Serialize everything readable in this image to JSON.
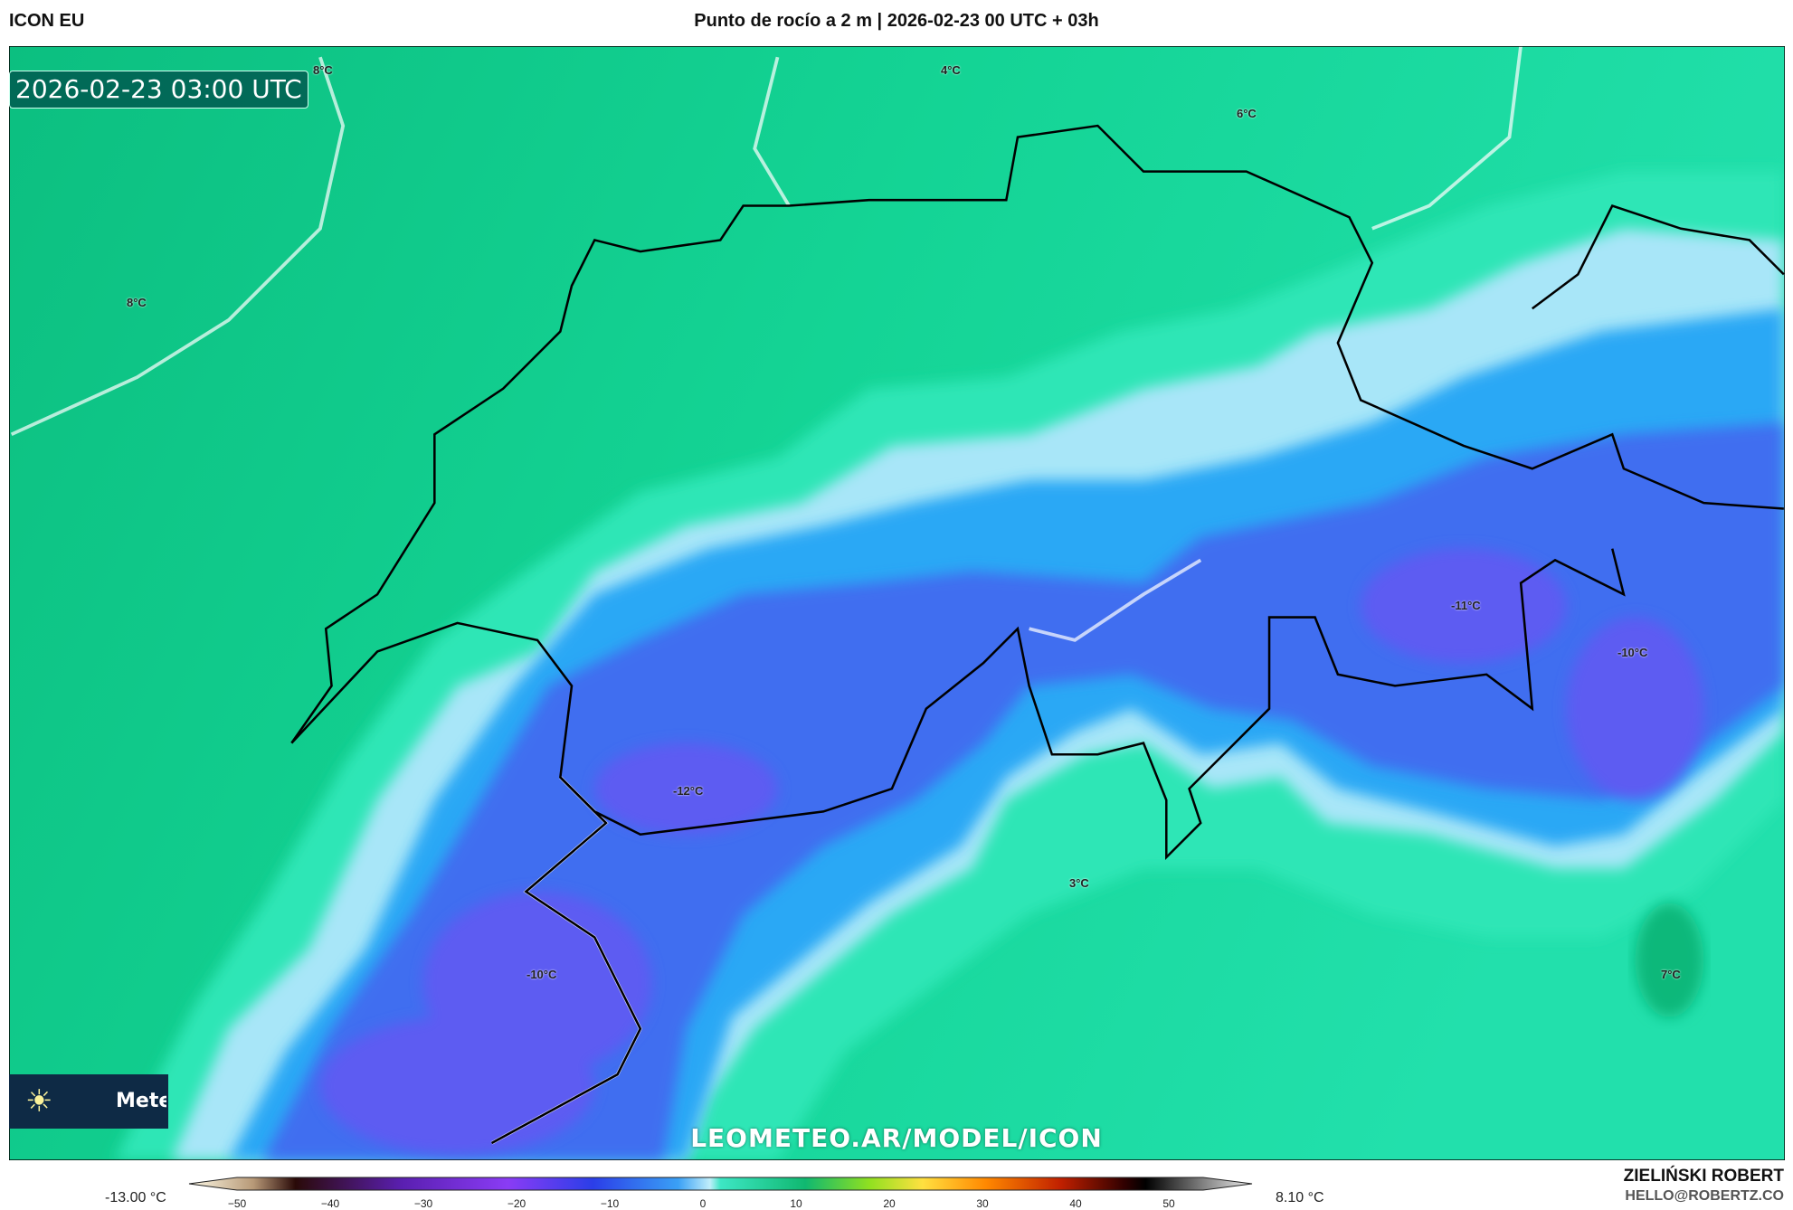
{
  "header": {
    "model": "ICON EU",
    "title": "Punto de rocío a 2 m | 2026-02-23 00 UTC + 03h"
  },
  "map": {
    "timestamp": "2026-02-23 03:00 UTC",
    "watermark": "LEOMETEO.AR/MODEL/ICON",
    "labels": [
      "8°C",
      "4°C",
      "6°C",
      "8°C",
      "-11°C",
      "-10°C",
      "-12°C",
      "3°C",
      "-10°C",
      "7°C"
    ],
    "colors": {
      "warm_green": "#0fc98a",
      "light_green": "#2ee8b8",
      "light_blue": "#a8e6f8",
      "blue": "#2aa8f5",
      "deep_blue": "#3f6ef0",
      "purple": "#5d5cf2"
    }
  },
  "logo": {
    "text": "Meteo",
    "icon": "sun-icon"
  },
  "colorbar": {
    "min_label": "-13.00 °C",
    "max_label": "8.10 °C",
    "ticks": [
      "−50",
      "−40",
      "−30",
      "−20",
      "−10",
      "0",
      "10",
      "20",
      "30",
      "40",
      "50"
    ]
  },
  "credits": {
    "author": "ZIELIŃSKI ROBERT",
    "email": "HELLO@ROBERTZ.CO"
  }
}
